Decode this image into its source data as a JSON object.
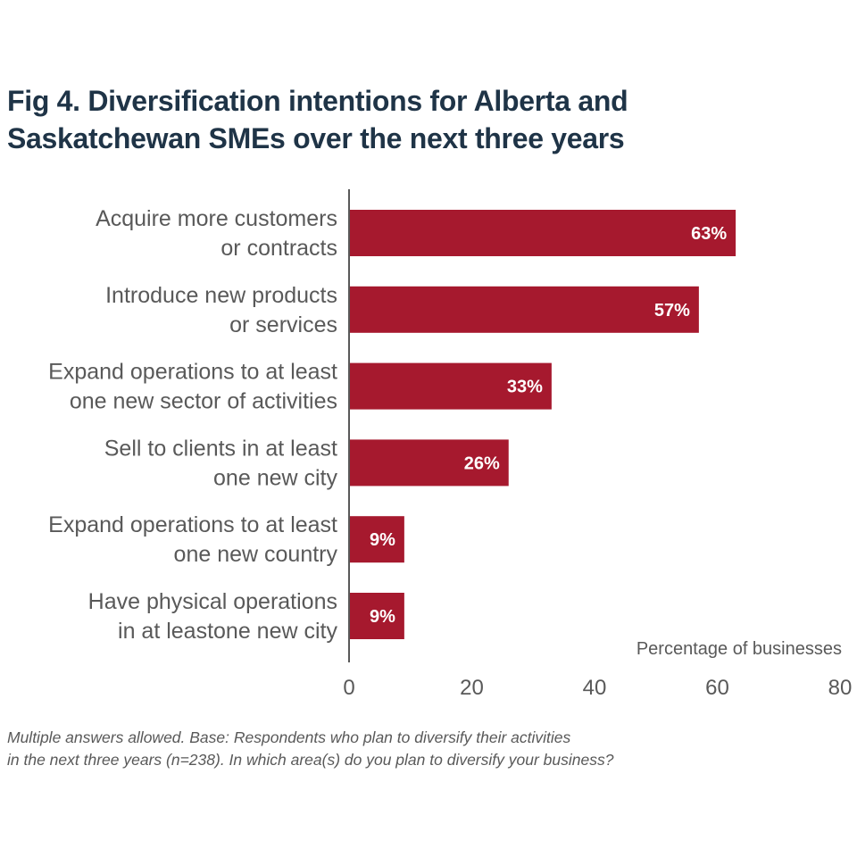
{
  "chart_data": {
    "type": "bar",
    "orientation": "horizontal",
    "title": [
      "Fig 4. Diversification intentions for Alberta and",
      "Saskatchewan SMEs over the next three years"
    ],
    "categories": [
      [
        "Acquire more customers",
        "or contracts"
      ],
      [
        "Introduce new products",
        "or services"
      ],
      [
        "Expand operations to at least",
        "one new sector of activities"
      ],
      [
        "Sell to clients in at least",
        "one new city"
      ],
      [
        "Expand operations to at least",
        "one new country"
      ],
      [
        "Have physical operations",
        "in at leastone new city"
      ]
    ],
    "values": [
      63,
      57,
      33,
      26,
      9,
      9
    ],
    "value_labels": [
      "63%",
      "57%",
      "33%",
      "26%",
      "9%",
      "9%"
    ],
    "xlabel": "Percentage of businesses",
    "ylabel": "",
    "xlim": [
      0,
      80
    ],
    "xticks": [
      0,
      20,
      40,
      60,
      80
    ],
    "grid": false,
    "bar_color": "#a6192e",
    "title_color": "#1f3447",
    "text_color": "#595959"
  },
  "footnote": [
    "Multiple answers allowed. Base: Respondents who plan to diversify their activities",
    "in the next three years (n=238). In which area(s) do you plan to diversify your business?"
  ]
}
